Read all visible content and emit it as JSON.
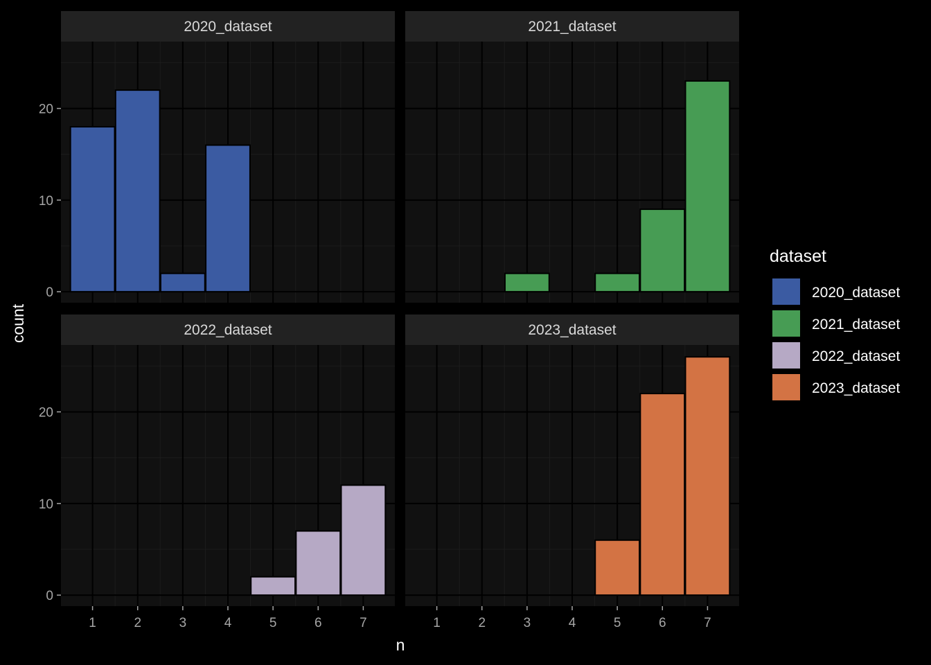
{
  "chart_data": {
    "type": "bar",
    "facet_wrap": "dataset",
    "xlabel": "n",
    "ylabel": "count",
    "x_ticks": [
      1,
      2,
      3,
      4,
      5,
      6,
      7
    ],
    "y_ticks": [
      0,
      10,
      20
    ],
    "ylim": [
      -1.2,
      27.3
    ],
    "xlim": [
      0.3,
      7.7
    ],
    "grid": true,
    "legend_position": "right",
    "legend_title": "dataset",
    "panels": [
      {
        "name": "2020_dataset",
        "color": "#3b5ba2",
        "bars": [
          {
            "x": 1,
            "y": 18
          },
          {
            "x": 2,
            "y": 22
          },
          {
            "x": 3,
            "y": 2
          },
          {
            "x": 4,
            "y": 16
          }
        ]
      },
      {
        "name": "2021_dataset",
        "color": "#479c54",
        "bars": [
          {
            "x": 3,
            "y": 2
          },
          {
            "x": 5,
            "y": 2
          },
          {
            "x": 6,
            "y": 9
          },
          {
            "x": 7,
            "y": 23
          }
        ]
      },
      {
        "name": "2022_dataset",
        "color": "#b6a9c5",
        "bars": [
          {
            "x": 5,
            "y": 2
          },
          {
            "x": 6,
            "y": 7
          },
          {
            "x": 7,
            "y": 12
          }
        ]
      },
      {
        "name": "2023_dataset",
        "color": "#d37344",
        "bars": [
          {
            "x": 5,
            "y": 6
          },
          {
            "x": 6,
            "y": 22
          },
          {
            "x": 7,
            "y": 26
          }
        ]
      }
    ]
  },
  "theme": {
    "background": "#000000",
    "panel_background": "#111111",
    "strip_background": "#222222",
    "grid_major": "#000000",
    "grid_minor": "#1c1c1c",
    "bar_outline": "#000000"
  }
}
